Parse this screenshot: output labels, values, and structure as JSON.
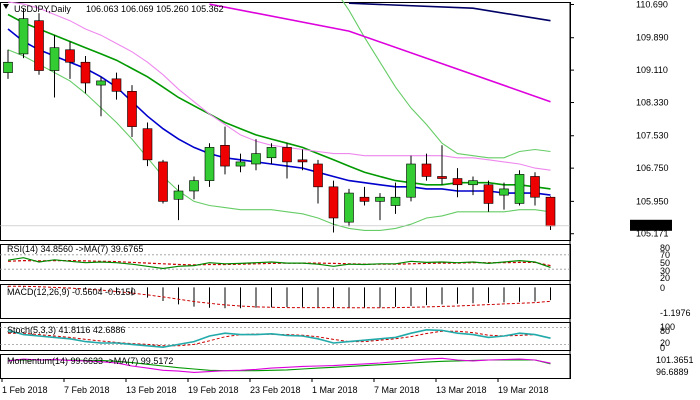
{
  "chart_data": {
    "type": "candlestick",
    "symbol_label": "USDJPY,Daily",
    "ohlc_label": "106.063 106.069 105.260 105.362",
    "last_price_label": "105.362",
    "price_axis_ticks": [
      "110.690",
      "109.890",
      "109.110",
      "108.330",
      "107.530",
      "106.750",
      "105.950",
      "105.171"
    ],
    "price_range": [
      105.02,
      110.75
    ],
    "x_labels": [
      "1 Feb 2018",
      "7 Feb 2018",
      "13 Feb 2018",
      "19 Feb 2018",
      "23 Feb 2018",
      "1 Mar 2018",
      "7 Mar 2018",
      "13 Mar 2018",
      "19 Mar 2018"
    ],
    "x_label_index": [
      0,
      4,
      8,
      12,
      16,
      20,
      24,
      28,
      32
    ],
    "candles": [
      {
        "o": 109.05,
        "h": 109.6,
        "l": 108.9,
        "c": 109.3
      },
      {
        "o": 109.5,
        "h": 110.6,
        "l": 109.4,
        "c": 110.35
      },
      {
        "o": 110.3,
        "h": 110.48,
        "l": 109.0,
        "c": 109.1
      },
      {
        "o": 109.1,
        "h": 109.95,
        "l": 108.45,
        "c": 109.65
      },
      {
        "o": 109.6,
        "h": 109.8,
        "l": 108.9,
        "c": 109.3
      },
      {
        "o": 109.3,
        "h": 109.45,
        "l": 108.55,
        "c": 108.8
      },
      {
        "o": 108.75,
        "h": 108.95,
        "l": 108.0,
        "c": 108.85
      },
      {
        "o": 108.9,
        "h": 109.05,
        "l": 108.4,
        "c": 108.6
      },
      {
        "o": 108.6,
        "h": 108.75,
        "l": 107.5,
        "c": 107.75
      },
      {
        "o": 107.7,
        "h": 107.85,
        "l": 106.8,
        "c": 106.95
      },
      {
        "o": 106.9,
        "h": 106.95,
        "l": 105.9,
        "c": 105.95
      },
      {
        "o": 106.0,
        "h": 106.35,
        "l": 105.5,
        "c": 106.2
      },
      {
        "o": 106.2,
        "h": 106.55,
        "l": 106.0,
        "c": 106.45
      },
      {
        "o": 106.45,
        "h": 107.35,
        "l": 106.3,
        "c": 107.25
      },
      {
        "o": 107.3,
        "h": 107.75,
        "l": 106.6,
        "c": 106.8
      },
      {
        "o": 106.8,
        "h": 107.1,
        "l": 106.65,
        "c": 106.9
      },
      {
        "o": 106.85,
        "h": 107.45,
        "l": 106.7,
        "c": 107.1
      },
      {
        "o": 107.0,
        "h": 107.35,
        "l": 106.85,
        "c": 107.25
      },
      {
        "o": 107.25,
        "h": 107.35,
        "l": 106.5,
        "c": 106.9
      },
      {
        "o": 106.95,
        "h": 107.2,
        "l": 106.7,
        "c": 106.9
      },
      {
        "o": 106.85,
        "h": 106.95,
        "l": 105.9,
        "c": 106.3
      },
      {
        "o": 106.3,
        "h": 106.45,
        "l": 105.2,
        "c": 105.55
      },
      {
        "o": 105.45,
        "h": 106.25,
        "l": 105.35,
        "c": 106.15
      },
      {
        "o": 106.05,
        "h": 106.3,
        "l": 105.85,
        "c": 105.95
      },
      {
        "o": 105.95,
        "h": 106.15,
        "l": 105.5,
        "c": 106.05
      },
      {
        "o": 105.85,
        "h": 106.4,
        "l": 105.65,
        "c": 106.05
      },
      {
        "o": 106.05,
        "h": 107.05,
        "l": 105.95,
        "c": 106.85
      },
      {
        "o": 106.85,
        "h": 107.1,
        "l": 106.45,
        "c": 106.55
      },
      {
        "o": 106.55,
        "h": 107.3,
        "l": 106.35,
        "c": 106.5
      },
      {
        "o": 106.5,
        "h": 106.75,
        "l": 106.05,
        "c": 106.35
      },
      {
        "o": 106.35,
        "h": 106.55,
        "l": 106.1,
        "c": 106.45
      },
      {
        "o": 106.35,
        "h": 106.45,
        "l": 105.7,
        "c": 105.9
      },
      {
        "o": 106.1,
        "h": 106.4,
        "l": 105.75,
        "c": 106.25
      },
      {
        "o": 105.9,
        "h": 106.7,
        "l": 105.85,
        "c": 106.6
      },
      {
        "o": 106.55,
        "h": 106.65,
        "l": 105.85,
        "c": 106.05
      },
      {
        "o": 106.05,
        "h": 106.07,
        "l": 105.26,
        "c": 105.36
      }
    ],
    "indicator_lines": [
      {
        "color": "#0000cc",
        "y": [
          110.1,
          109.8,
          109.6,
          109.45,
          109.3,
          109.15,
          108.95,
          108.7,
          108.35,
          108.0,
          107.7,
          107.45,
          107.25,
          107.1,
          107.0,
          106.95,
          106.9,
          106.85,
          106.8,
          106.75,
          106.65,
          106.55,
          106.45,
          106.4,
          106.35,
          106.3,
          106.3,
          106.25,
          106.25,
          106.2,
          106.2,
          106.2,
          106.15,
          106.15,
          106.15,
          106.1
        ]
      },
      {
        "color": "#009900",
        "y": [
          110.45,
          110.25,
          110.1,
          109.95,
          109.8,
          109.65,
          109.5,
          109.35,
          109.15,
          108.95,
          108.7,
          108.45,
          108.25,
          108.05,
          107.85,
          107.7,
          107.55,
          107.45,
          107.35,
          107.25,
          107.1,
          106.95,
          106.8,
          106.65,
          106.55,
          106.45,
          106.4,
          106.35,
          106.35,
          106.4,
          106.4,
          106.4,
          106.35,
          106.35,
          106.3,
          106.25
        ]
      },
      {
        "color": "#dd00dd",
        "y": [
          null,
          null,
          null,
          null,
          null,
          null,
          null,
          null,
          null,
          null,
          null,
          null,
          null,
          null,
          null,
          null,
          null,
          null,
          null,
          null,
          null,
          null,
          null,
          null,
          null,
          null,
          null,
          null,
          null,
          null,
          null,
          null,
          null,
          null,
          null,
          null
        ]
      },
      {
        "color": "#ee88ee",
        "y": [
          110.75,
          110.7,
          110.6,
          110.45,
          110.3,
          110.1,
          109.95,
          109.75,
          109.55,
          109.3,
          109.0,
          108.65,
          108.35,
          108.05,
          107.8,
          107.55,
          107.4,
          107.3,
          107.25,
          107.2,
          107.15,
          107.1,
          107.1,
          107.05,
          107.05,
          107.05,
          107.05,
          107.05,
          107.05,
          107.0,
          107.0,
          106.95,
          106.9,
          106.85,
          106.75,
          106.7
        ]
      },
      {
        "color": "#66cc66",
        "y": [
          109.6,
          109.45,
          109.25,
          109.05,
          108.85,
          108.55,
          108.2,
          107.85,
          107.45,
          107.0,
          106.55,
          106.2,
          105.95,
          105.85,
          105.8,
          105.75,
          105.75,
          105.75,
          105.7,
          105.65,
          105.55,
          105.4,
          105.3,
          105.25,
          105.25,
          105.3,
          105.4,
          105.55,
          105.6,
          105.7,
          105.7,
          105.7,
          105.7,
          105.75,
          105.75,
          105.7
        ]
      },
      {
        "color": "#66cc66",
        "y": [
          null,
          null,
          null,
          null,
          null,
          null,
          null,
          null,
          null,
          null,
          null,
          null,
          null,
          null,
          null,
          null,
          null,
          null,
          null,
          null,
          111.6,
          111.1,
          110.55,
          109.9,
          109.3,
          108.7,
          108.2,
          107.8,
          107.35,
          107.1,
          107.05,
          107.0,
          107.0,
          107.15,
          107.2,
          107.15
        ]
      }
    ],
    "upper_ma_segments": [
      {
        "color": "#dd00dd",
        "points": [
          [
            13,
            110.7
          ],
          [
            22,
            110.05
          ],
          [
            35,
            108.35
          ]
        ]
      },
      {
        "color": "#000066",
        "points": [
          [
            22,
            110.72
          ],
          [
            30,
            110.6
          ],
          [
            35,
            110.3
          ]
        ]
      }
    ],
    "rsi": {
      "label": "RSI(14) 34.8560 ->MA(7) 39.6765",
      "ticks": [
        "80",
        "70",
        "50",
        "30",
        "20"
      ],
      "range": [
        0,
        100
      ],
      "levels": [
        70,
        30
      ],
      "rsi": [
        55,
        62,
        50,
        56,
        52,
        48,
        50,
        48,
        44,
        38,
        32,
        38,
        40,
        48,
        45,
        46,
        48,
        50,
        47,
        47,
        44,
        38,
        44,
        43,
        45,
        45,
        52,
        49,
        50,
        48,
        50,
        46,
        50,
        54,
        50,
        35
      ],
      "ma": [
        52,
        54,
        53,
        54,
        54,
        53,
        52,
        51,
        49,
        47,
        45,
        43,
        42,
        43,
        43,
        44,
        45,
        46,
        47,
        47,
        47,
        46,
        45,
        44,
        44,
        44,
        45,
        46,
        47,
        47,
        48,
        48,
        48,
        49,
        49,
        40
      ]
    },
    "macd": {
      "label": "MACD(12,26,9) -0.5604 -0.6150",
      "ticks": [
        "0",
        "-1.1976"
      ],
      "range": [
        -1.35,
        0.15
      ],
      "hist": [
        0.05,
        0.05,
        0.02,
        0.0,
        -0.05,
        -0.1,
        -0.18,
        -0.25,
        -0.35,
        -0.45,
        -0.6,
        -0.75,
        -0.85,
        -0.9,
        -0.92,
        -0.92,
        -0.9,
        -0.88,
        -0.87,
        -0.86,
        -0.88,
        -0.9,
        -0.91,
        -0.9,
        -0.89,
        -0.86,
        -0.82,
        -0.78,
        -0.75,
        -0.72,
        -0.7,
        -0.68,
        -0.66,
        -0.64,
        -0.62,
        -0.56
      ],
      "signal": [
        0.05,
        0.05,
        0.03,
        0.0,
        -0.03,
        -0.07,
        -0.12,
        -0.18,
        -0.25,
        -0.33,
        -0.42,
        -0.52,
        -0.62,
        -0.7,
        -0.77,
        -0.82,
        -0.86,
        -0.88,
        -0.89,
        -0.89,
        -0.89,
        -0.89,
        -0.9,
        -0.9,
        -0.9,
        -0.89,
        -0.88,
        -0.86,
        -0.84,
        -0.82,
        -0.79,
        -0.76,
        -0.73,
        -0.7,
        -0.67,
        -0.615
      ]
    },
    "stoch": {
      "label": "Stoch(5,3,3) 41.8116 42.6886",
      "ticks": [
        "100",
        "80",
        "20",
        "0"
      ],
      "range": [
        0,
        100
      ],
      "k": [
        70,
        55,
        50,
        45,
        40,
        30,
        25,
        25,
        20,
        15,
        10,
        20,
        30,
        50,
        60,
        55,
        55,
        58,
        52,
        50,
        40,
        25,
        30,
        35,
        40,
        45,
        60,
        72,
        70,
        60,
        55,
        45,
        50,
        60,
        55,
        42
      ],
      "d": [
        60,
        60,
        55,
        50,
        45,
        38,
        32,
        27,
        23,
        20,
        15,
        15,
        20,
        33,
        47,
        55,
        57,
        56,
        55,
        53,
        47,
        38,
        30,
        30,
        35,
        40,
        48,
        59,
        67,
        67,
        62,
        53,
        50,
        52,
        55,
        43
      ]
    },
    "momentum": {
      "label": "Momentum(14) 99.6633 ->MA(7) 99.5172",
      "ticks": [
        "101.3651",
        "96.6889"
      ],
      "range": [
        96.2,
        101.8
      ],
      "mom": [
        100.2,
        100.6,
        100.4,
        100.5,
        100.3,
        100.2,
        100.0,
        99.7,
        99.0,
        98.5,
        98.0,
        97.8,
        97.5,
        97.7,
        97.9,
        98.0,
        98.2,
        98.5,
        98.7,
        98.9,
        99.0,
        99.1,
        99.3,
        99.5,
        99.7,
        100.0,
        100.3,
        100.6,
        100.8,
        100.4,
        100.2,
        100.4,
        100.5,
        100.6,
        100.4,
        99.66
      ],
      "ma": [
        100.3,
        100.4,
        100.4,
        100.4,
        100.4,
        100.3,
        100.3,
        100.1,
        99.8,
        99.4,
        99.0,
        98.6,
        98.3,
        98.0,
        97.9,
        97.9,
        97.9,
        98.0,
        98.1,
        98.3,
        98.5,
        98.7,
        98.9,
        99.1,
        99.3,
        99.5,
        99.7,
        99.9,
        100.1,
        100.2,
        100.3,
        100.4,
        100.4,
        100.4,
        100.4,
        99.52
      ]
    }
  }
}
